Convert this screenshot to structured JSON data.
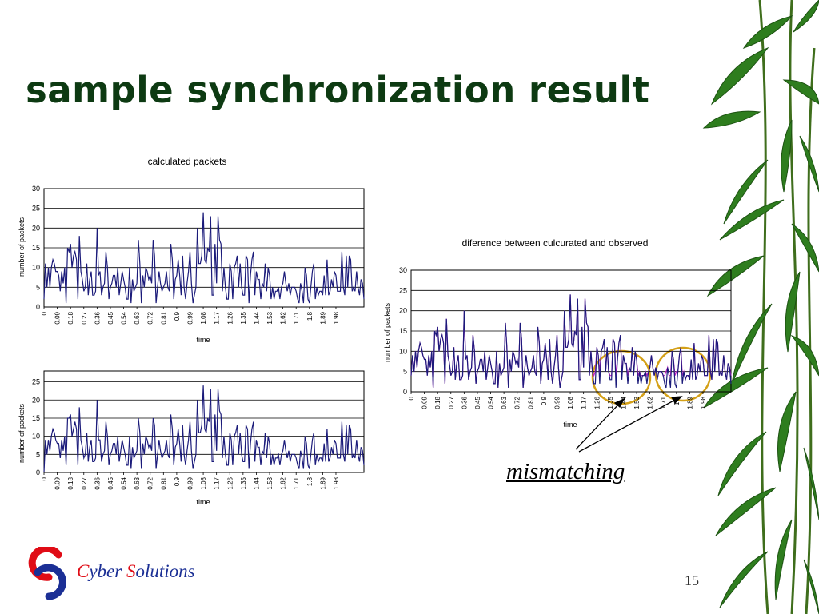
{
  "slide": {
    "title": "sample synchronization result",
    "annotation": "mismatching",
    "company_initial_1": "C",
    "company_rest_1": "yber ",
    "company_initial_2": "S",
    "company_rest_2": "olutions",
    "page_number": "15",
    "colors": {
      "title": "#0d3a12",
      "navy_series": "#1b1b7a",
      "magenta_series": "#c21fc8",
      "circle": "#d4a017",
      "company_text": "#1b2f95",
      "company_caps": "#e00c16"
    }
  },
  "chart_data": [
    {
      "type": "line",
      "title": "calculated packets",
      "xlabel": "time",
      "ylabel": "number of packets",
      "ylim": [
        0,
        30
      ],
      "yticks": [
        0,
        5,
        10,
        15,
        20,
        25,
        30
      ],
      "xticks": [
        "0",
        "0.09",
        "0.18",
        "0.27",
        "0.36",
        "0.45",
        "0.54",
        "0.63",
        "0.72",
        "0.81",
        "0.9",
        "0.99",
        "1.08",
        "1.17",
        "1.26",
        "1.35",
        "1.44",
        "1.53",
        "1.62",
        "1.71",
        "1.8",
        "1.89",
        "1.98"
      ],
      "grid": true,
      "series": [
        {
          "color": "#1b1b7a",
          "x_start": 0,
          "x_step": 0.01,
          "values": [
            2,
            11,
            5,
            10,
            5,
            10,
            12,
            11,
            9,
            9,
            8,
            4,
            9,
            6,
            10,
            1,
            15,
            14,
            16,
            10,
            13,
            14,
            12,
            2,
            18,
            9,
            7,
            4,
            5,
            11,
            3,
            7,
            9,
            3,
            3,
            4,
            20,
            8,
            9,
            3,
            5,
            6,
            14,
            10,
            2,
            5,
            6,
            8,
            8,
            5,
            10,
            3,
            6,
            9,
            7,
            5,
            2,
            2,
            10,
            1,
            7,
            4,
            5,
            6,
            17,
            11,
            1,
            8,
            5,
            10,
            9,
            7,
            8,
            6,
            17,
            13,
            1,
            5,
            9,
            6,
            4,
            5,
            6,
            9,
            5,
            4,
            16,
            12,
            2,
            7,
            8,
            12,
            8,
            3,
            13,
            5,
            2,
            6,
            9,
            14,
            6,
            1,
            3,
            5,
            20,
            11,
            11,
            13,
            24,
            12,
            11,
            15,
            14,
            23,
            3,
            3,
            16,
            6,
            23,
            17,
            16,
            4,
            10,
            5,
            2,
            2,
            11,
            9,
            2,
            10,
            11,
            13,
            5,
            11,
            5,
            3,
            3,
            13,
            12,
            1,
            8,
            12,
            14,
            3,
            9,
            7,
            7,
            2,
            6,
            5,
            11,
            4,
            10,
            8,
            2,
            5,
            2,
            4,
            4,
            5,
            2,
            5,
            6,
            9,
            6,
            4,
            6,
            3,
            5,
            5,
            5,
            4,
            2,
            1,
            6,
            4,
            1,
            10,
            8,
            2,
            1,
            5,
            9,
            11,
            2,
            5,
            3,
            4,
            4,
            3,
            8,
            3,
            12,
            3,
            4,
            7,
            5,
            9,
            8,
            4,
            4,
            4,
            14,
            5,
            3,
            13,
            5,
            13,
            12,
            4,
            5,
            4,
            9,
            5,
            3,
            7,
            6,
            2
          ]
        }
      ]
    },
    {
      "type": "line",
      "title": "",
      "xlabel": "time",
      "ylabel": "number of packets",
      "ylim": [
        0,
        28
      ],
      "yticks": [
        0,
        5,
        10,
        15,
        20,
        25
      ],
      "xticks": [
        "0",
        "0.09",
        "0.18",
        "0.27",
        "0.36",
        "0.45",
        "0.54",
        "0.63",
        "0.72",
        "0.81",
        "0.9",
        "0.99",
        "1.08",
        "1.17",
        "1.26",
        "1.35",
        "1.44",
        "1.53",
        "1.62",
        "1.71",
        "1.8",
        "1.89",
        "1.98"
      ],
      "grid": true,
      "series": [
        {
          "color": "#1b1b7a",
          "x_start": 0,
          "x_step": 0.01,
          "values": [
            0,
            9,
            5,
            9,
            6,
            10,
            12,
            11,
            9,
            8,
            8,
            4,
            9,
            6,
            10,
            2,
            15,
            15,
            16,
            10,
            12,
            14,
            12,
            2,
            18,
            9,
            7,
            4,
            5,
            11,
            3,
            7,
            9,
            3,
            3,
            4,
            20,
            9,
            9,
            3,
            5,
            6,
            14,
            10,
            2,
            5,
            6,
            8,
            8,
            5,
            10,
            3,
            6,
            9,
            7,
            5,
            2,
            2,
            10,
            1,
            7,
            4,
            5,
            6,
            15,
            11,
            1,
            8,
            5,
            10,
            9,
            7,
            8,
            6,
            15,
            13,
            1,
            5,
            9,
            6,
            4,
            5,
            6,
            9,
            5,
            4,
            16,
            12,
            2,
            7,
            8,
            12,
            8,
            3,
            13,
            5,
            2,
            6,
            9,
            14,
            6,
            1,
            3,
            5,
            20,
            11,
            11,
            13,
            24,
            12,
            11,
            15,
            14,
            23,
            3,
            3,
            16,
            6,
            23,
            17,
            16,
            4,
            10,
            5,
            2,
            2,
            11,
            9,
            2,
            10,
            11,
            13,
            5,
            11,
            5,
            3,
            3,
            13,
            12,
            1,
            8,
            12,
            14,
            3,
            9,
            7,
            7,
            2,
            6,
            5,
            11,
            4,
            10,
            8,
            2,
            5,
            2,
            4,
            4,
            5,
            2,
            5,
            6,
            9,
            6,
            4,
            6,
            3,
            5,
            5,
            5,
            4,
            2,
            1,
            6,
            4,
            1,
            10,
            8,
            2,
            1,
            5,
            9,
            11,
            2,
            5,
            3,
            4,
            4,
            3,
            8,
            3,
            12,
            3,
            4,
            7,
            5,
            9,
            8,
            4,
            4,
            4,
            14,
            5,
            3,
            13,
            5,
            13,
            12,
            4,
            5,
            4,
            9,
            5,
            3,
            7,
            6,
            2
          ]
        }
      ]
    },
    {
      "type": "line",
      "title": "diference between culcurated and observed",
      "xlabel": "time",
      "ylabel": "number of packets",
      "ylim": [
        0,
        30
      ],
      "yticks": [
        0,
        5,
        10,
        15,
        20,
        25,
        30
      ],
      "xticks": [
        "0",
        "0.09",
        "0.18",
        "0.27",
        "0.36",
        "0.45",
        "0.54",
        "0.63",
        "0.72",
        "0.81",
        "0.9",
        "0.99",
        "1.08",
        "1.17",
        "1.26",
        "1.35",
        "1.44",
        "1.53",
        "1.62",
        "1.71",
        "1.8",
        "1.89",
        "1.98"
      ],
      "grid": true,
      "series": [
        {
          "color": "#c21fc8",
          "x_start": 0,
          "x_step": 0.01,
          "values": [
            4,
            9,
            5,
            10,
            6,
            10,
            12,
            11,
            9,
            8,
            8,
            4,
            9,
            6,
            10,
            1,
            15,
            14,
            16,
            10,
            13,
            14,
            12,
            2,
            18,
            9,
            7,
            4,
            5,
            11,
            3,
            7,
            9,
            3,
            3,
            4,
            20,
            8,
            9,
            3,
            5,
            6,
            14,
            10,
            2,
            5,
            6,
            8,
            8,
            5,
            10,
            3,
            6,
            9,
            7,
            5,
            2,
            2,
            10,
            1,
            7,
            4,
            5,
            6,
            17,
            11,
            1,
            8,
            5,
            10,
            9,
            7,
            8,
            6,
            17,
            13,
            1,
            5,
            9,
            6,
            4,
            5,
            6,
            9,
            5,
            4,
            16,
            12,
            2,
            7,
            8,
            12,
            8,
            3,
            13,
            5,
            2,
            6,
            9,
            14,
            6,
            1,
            3,
            5,
            20,
            11,
            11,
            13,
            24,
            12,
            11,
            15,
            14,
            23,
            3,
            3,
            16,
            6,
            23,
            17,
            16,
            4,
            10,
            5,
            4,
            5,
            11,
            9,
            5,
            10,
            11,
            13,
            5,
            11,
            5,
            4,
            4,
            13,
            12,
            4,
            8,
            12,
            14,
            4,
            9,
            7,
            7,
            4,
            6,
            5,
            11,
            4,
            10,
            8,
            4,
            5,
            4,
            4,
            4,
            5,
            4,
            5,
            6,
            9,
            6,
            4,
            6,
            3,
            5,
            5,
            5,
            4,
            4,
            5,
            6,
            4,
            4,
            10,
            8,
            4,
            5,
            5,
            9,
            11,
            4,
            5,
            3,
            4,
            4,
            3,
            8,
            3,
            12,
            3,
            4,
            7,
            5,
            9,
            8,
            4,
            4,
            4,
            14,
            5,
            3,
            13,
            5,
            13,
            12,
            4,
            5,
            4,
            9,
            5,
            3,
            7,
            6,
            4
          ]
        },
        {
          "color": "#1b1b7a",
          "x_start": 0,
          "x_step": 0.01,
          "values": [
            4,
            9,
            5,
            10,
            6,
            10,
            12,
            11,
            9,
            8,
            8,
            4,
            9,
            6,
            10,
            1,
            15,
            14,
            16,
            10,
            13,
            14,
            12,
            2,
            18,
            9,
            7,
            4,
            5,
            11,
            3,
            7,
            9,
            3,
            3,
            4,
            20,
            8,
            9,
            3,
            5,
            6,
            14,
            10,
            2,
            5,
            6,
            8,
            8,
            5,
            10,
            3,
            6,
            9,
            7,
            5,
            2,
            2,
            10,
            1,
            7,
            4,
            5,
            6,
            17,
            11,
            1,
            8,
            5,
            10,
            9,
            7,
            8,
            6,
            17,
            13,
            1,
            5,
            9,
            6,
            4,
            5,
            6,
            9,
            5,
            4,
            16,
            12,
            2,
            7,
            8,
            12,
            8,
            3,
            13,
            5,
            2,
            6,
            9,
            14,
            6,
            1,
            3,
            5,
            20,
            11,
            11,
            13,
            24,
            12,
            11,
            15,
            14,
            23,
            3,
            3,
            16,
            6,
            23,
            17,
            16,
            4,
            10,
            5,
            2,
            2,
            11,
            9,
            2,
            10,
            11,
            13,
            5,
            11,
            5,
            3,
            3,
            13,
            12,
            1,
            8,
            12,
            14,
            3,
            9,
            7,
            7,
            2,
            6,
            5,
            11,
            4,
            10,
            8,
            2,
            5,
            2,
            4,
            4,
            5,
            2,
            5,
            6,
            9,
            6,
            4,
            6,
            3,
            5,
            5,
            5,
            4,
            2,
            1,
            6,
            4,
            1,
            10,
            8,
            2,
            1,
            5,
            9,
            11,
            2,
            5,
            3,
            4,
            4,
            3,
            8,
            3,
            12,
            3,
            4,
            7,
            5,
            9,
            8,
            4,
            4,
            4,
            14,
            5,
            3,
            13,
            5,
            13,
            12,
            4,
            5,
            4,
            9,
            5,
            3,
            7,
            6,
            2
          ]
        }
      ]
    }
  ]
}
